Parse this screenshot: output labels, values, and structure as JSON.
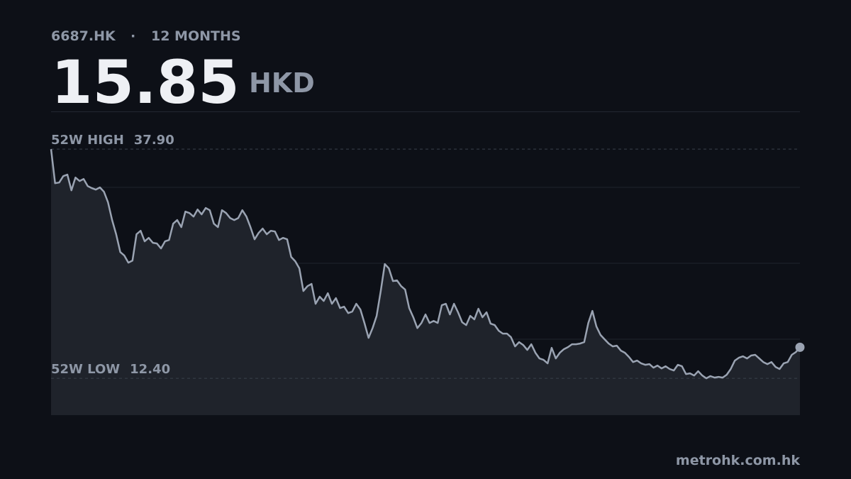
{
  "header": {
    "ticker": "6687.HK",
    "separator": "·",
    "period": "12 MONTHS",
    "price": "15.85",
    "currency": "HKD"
  },
  "footer": {
    "site": "metrohk.com.hk"
  },
  "chart_data": {
    "type": "line",
    "color": "#9aa3b2",
    "ylim": [
      8.3,
      42.1
    ],
    "reference_lines": [
      {
        "name": "52W HIGH",
        "value": 37.9,
        "label": "37.90"
      },
      {
        "name": "52W LOW",
        "value": 12.4,
        "label": "12.40"
      }
    ],
    "values": [
      37.9,
      34.11,
      34.19,
      34.9,
      35.06,
      33.32,
      34.74,
      34.35,
      34.58,
      33.79,
      33.56,
      33.4,
      33.64,
      33.16,
      31.98,
      30.01,
      28.43,
      26.45,
      26.06,
      25.27,
      25.5,
      28.43,
      28.82,
      27.64,
      28.03,
      27.48,
      27.4,
      26.85,
      27.64,
      27.79,
      29.61,
      30.01,
      29.22,
      30.95,
      30.79,
      30.4,
      31.19,
      30.64,
      31.35,
      31.11,
      29.61,
      29.22,
      31.11,
      30.79,
      30.24,
      30.01,
      30.24,
      31.11,
      30.4,
      29.22,
      27.87,
      28.58,
      29.06,
      28.43,
      28.82,
      28.74,
      27.79,
      28.03,
      27.87,
      25.9,
      25.43,
      24.64,
      22.11,
      22.66,
      22.9,
      20.69,
      21.48,
      21.01,
      21.87,
      20.69,
      21.32,
      20.22,
      20.37,
      19.66,
      19.82,
      20.69,
      20.06,
      18.56,
      16.9,
      17.99,
      19.35,
      22.11,
      25.11,
      24.64,
      23.22,
      23.3,
      22.66,
      22.27,
      20.22,
      19.19,
      17.99,
      18.56,
      19.51,
      18.56,
      18.79,
      18.56,
      20.53,
      20.69,
      19.51,
      20.69,
      19.74,
      18.64,
      18.32,
      19.35,
      18.95,
      20.14,
      19.19,
      19.74,
      18.48,
      18.32,
      17.69,
      17.37,
      17.37,
      16.98,
      15.95,
      16.43,
      16.11,
      15.56,
      16.19,
      15.24,
      14.61,
      14.45,
      14.06,
      15.79,
      14.61,
      15.24,
      15.64,
      15.87,
      16.19,
      16.19,
      16.27,
      16.43,
      18.56,
      19.9,
      18.16,
      17.22,
      16.74,
      16.27,
      15.95,
      16.03,
      15.48,
      15.24,
      14.77,
      14.21,
      14.37,
      14.06,
      13.9,
      13.98,
      13.58,
      13.82,
      13.5,
      13.74,
      13.43,
      13.27,
      13.9,
      13.74,
      12.87,
      12.95,
      12.71,
      13.19,
      12.71,
      12.4,
      12.64,
      12.48,
      12.56,
      12.48,
      12.79,
      13.43,
      14.37,
      14.69,
      14.85,
      14.61,
      14.93,
      15.01,
      14.61,
      14.21,
      13.98,
      14.21,
      13.66,
      13.43,
      14.06,
      14.21,
      15.01,
      15.32,
      15.85
    ]
  }
}
